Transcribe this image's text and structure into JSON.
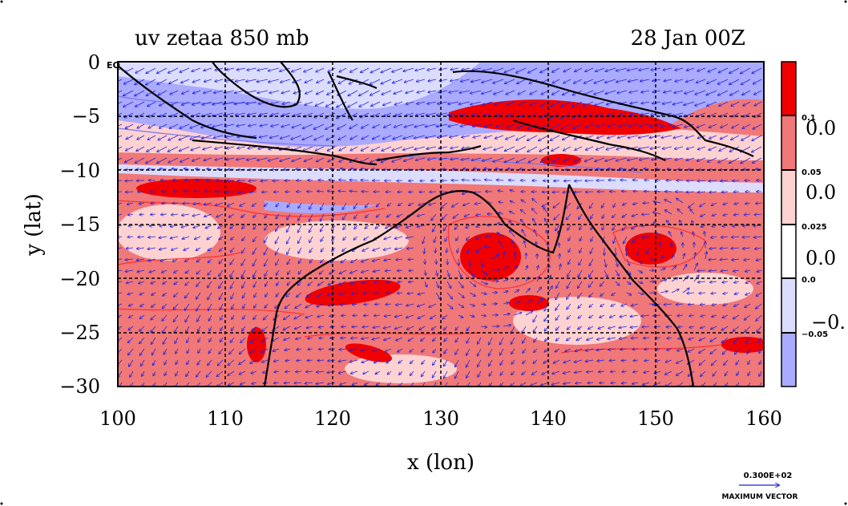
{
  "title_left": "uv zetaa 850 mb",
  "title_right": "28 Jan 00Z",
  "xlabel": "x (lon)",
  "ylabel": "y (lat)",
  "x_ticks": [
    "100",
    "110",
    "120",
    "130",
    "140",
    "150",
    "160"
  ],
  "y_ticks": [
    "0",
    "−5",
    "−10",
    "−15",
    "−20",
    "−25",
    "−30"
  ],
  "eq_label": "EQ",
  "colorbar": {
    "ticks": [
      "0.1",
      "0.05",
      "0.025",
      "0.0",
      "−0.05"
    ],
    "side_labels": [
      "0.0",
      "0.0",
      "0.0",
      "−0."
    ],
    "colors": [
      "#f00000",
      "#f07878",
      "#ffd2d2",
      "#ffffff",
      "#dcdcff",
      "#aaaaff"
    ]
  },
  "vector_ref": {
    "value": "0.300E+02",
    "label": "MAXIMUM VECTOR",
    "color": "#2222dd"
  },
  "colors": {
    "strong_pos": "#f00000",
    "mid_pos": "#f07878",
    "weak_pos": "#ffd2d2",
    "weak_neg": "#dcdcff",
    "neg": "#aaaaff",
    "contour_red": "#ff3030",
    "contour_blue": "#7777ee",
    "vector": "#2222dd",
    "coast": "#000000"
  }
}
